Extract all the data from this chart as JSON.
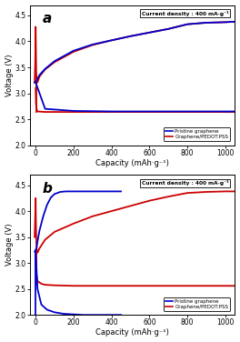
{
  "title_a": "a",
  "title_b": "b",
  "xlabel": "Capacity (mAh·g⁻¹)",
  "ylabel": "Voltage (V)",
  "annotation": "Current density : 400 mA·g⁻¹",
  "legend_blue": "Pristine graphene",
  "legend_red": "Graphene/PEDOT:PSS",
  "blue_color": "#0000cc",
  "red_color": "#cc0000",
  "ylim": [
    2.0,
    4.7
  ],
  "xlim": [
    -30,
    1050
  ],
  "yticks": [
    2.0,
    2.5,
    3.0,
    3.5,
    4.0,
    4.5
  ],
  "xticks": [
    0,
    200,
    400,
    600,
    800,
    1000
  ],
  "background": "#ffffff",
  "lw": 1.3,
  "a_blue_charge_x": [
    -5,
    0,
    5,
    10,
    20,
    50,
    100,
    200,
    300,
    400,
    500,
    600,
    700,
    800,
    900,
    1000,
    1050
  ],
  "a_blue_charge_v": [
    3.21,
    3.22,
    3.24,
    3.28,
    3.35,
    3.47,
    3.62,
    3.82,
    3.94,
    4.02,
    4.1,
    4.17,
    4.24,
    4.33,
    4.36,
    4.37,
    4.38
  ],
  "a_blue_discharge_x": [
    0,
    50,
    200,
    400,
    600,
    800,
    1000,
    1050
  ],
  "a_blue_discharge_v": [
    3.21,
    2.7,
    2.66,
    2.65,
    2.65,
    2.65,
    2.65,
    2.65
  ],
  "a_red_charge_spike_x": [
    -5,
    -2,
    0,
    1,
    3,
    6,
    10
  ],
  "a_red_charge_spike_v": [
    3.2,
    3.6,
    4.28,
    4.0,
    3.4,
    3.21,
    3.21
  ],
  "a_red_charge_x": [
    10,
    20,
    50,
    100,
    200,
    300,
    400,
    500,
    600,
    700,
    800,
    900,
    1000,
    1050
  ],
  "a_red_charge_v": [
    3.21,
    3.32,
    3.46,
    3.6,
    3.8,
    3.93,
    4.02,
    4.1,
    4.17,
    4.24,
    4.33,
    4.36,
    4.37,
    4.38
  ],
  "a_red_discharge_x": [
    0,
    2,
    6,
    10,
    50,
    200,
    400,
    600,
    800,
    1000,
    1050
  ],
  "a_red_discharge_v": [
    3.1,
    2.8,
    2.68,
    2.65,
    2.64,
    2.64,
    2.64,
    2.64,
    2.64,
    2.64,
    2.64
  ],
  "b_blue_charge_x": [
    -5,
    0,
    5,
    10,
    20,
    40,
    60,
    80,
    100,
    130,
    160,
    200,
    300,
    400,
    450
  ],
  "b_blue_charge_v": [
    3.22,
    3.24,
    3.3,
    3.42,
    3.62,
    3.9,
    4.12,
    4.26,
    4.33,
    4.37,
    4.38,
    4.38,
    4.38,
    4.38,
    4.38
  ],
  "b_blue_discharge_x": [
    0,
    10,
    30,
    60,
    100,
    150,
    200,
    250,
    300,
    350,
    400,
    450
  ],
  "b_blue_discharge_v": [
    3.2,
    2.5,
    2.2,
    2.1,
    2.05,
    2.02,
    2.01,
    2.0,
    2.0,
    2.0,
    2.0,
    2.0
  ],
  "b_red_charge_spike_x": [
    -5,
    -2,
    0,
    1,
    3,
    6,
    10
  ],
  "b_red_charge_spike_v": [
    3.5,
    3.9,
    4.25,
    3.9,
    3.5,
    3.22,
    3.2
  ],
  "b_red_charge_x": [
    10,
    20,
    50,
    100,
    200,
    300,
    400,
    500,
    600,
    700,
    800,
    900,
    1000,
    1050
  ],
  "b_red_charge_v": [
    3.2,
    3.28,
    3.45,
    3.6,
    3.76,
    3.9,
    4.0,
    4.1,
    4.2,
    4.28,
    4.35,
    4.37,
    4.38,
    4.38
  ],
  "b_red_discharge_x": [
    0,
    5,
    10,
    30,
    50,
    100,
    200,
    400,
    600,
    800,
    1000,
    1050
  ],
  "b_red_discharge_v": [
    3.1,
    2.75,
    2.65,
    2.6,
    2.58,
    2.57,
    2.56,
    2.56,
    2.56,
    2.56,
    2.56,
    2.56
  ]
}
